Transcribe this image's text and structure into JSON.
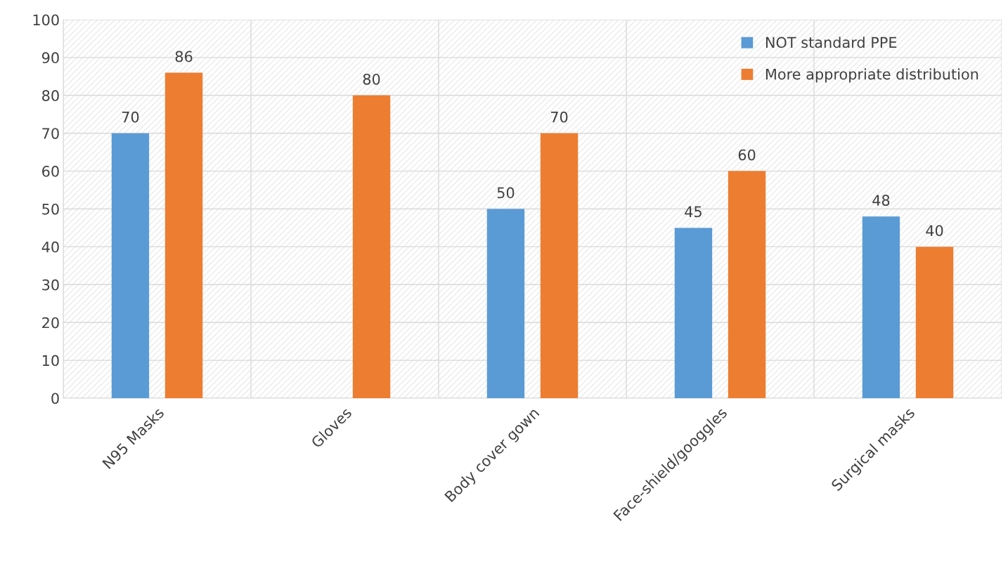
{
  "chart_data": {
    "type": "bar",
    "categories": [
      "N95 Masks",
      "Gloves",
      "Body cover gown",
      "Face-shield/googgles",
      "Surgical masks"
    ],
    "series": [
      {
        "name": "NOT standard PPE",
        "color": "#5b9bd5",
        "values": [
          70,
          null,
          50,
          45,
          48
        ]
      },
      {
        "name": "More appropriate distribution",
        "color": "#ed7d31",
        "values": [
          86,
          80,
          70,
          60,
          40
        ]
      }
    ],
    "ylim": [
      0,
      100
    ],
    "yticks": [
      0,
      10,
      20,
      30,
      40,
      50,
      60,
      70,
      80,
      90,
      100
    ],
    "grid": true,
    "legend": "top right",
    "data_labels": true
  }
}
